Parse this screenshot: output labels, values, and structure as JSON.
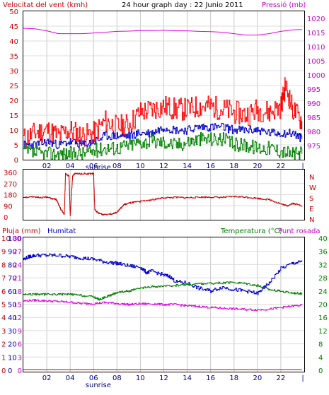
{
  "chart_data": [
    {
      "type": "line",
      "title": "24 hour graph day : 22 Junio 2011",
      "left_label": "Velocitat del vent (kmh)",
      "right_label": "Pressió (mb)",
      "sunrise_label": "sunrise",
      "xticks": [
        "02",
        "04",
        "06",
        "08",
        "10",
        "12",
        "14",
        "16",
        "18",
        "20",
        "22"
      ],
      "last_tick": "|",
      "left_ticks": [
        "0",
        "5",
        "10",
        "15",
        "20",
        "25",
        "30",
        "35",
        "40",
        "45",
        "50"
      ],
      "right_ticks": [
        "975",
        "980",
        "985",
        "990",
        "995",
        "1000",
        "1005",
        "1010",
        "1015",
        "1020"
      ],
      "ylim_left": [
        0,
        50
      ],
      "ylim_right": [
        970,
        1022.5
      ],
      "xlim": [
        0,
        24
      ],
      "colors": {
        "gust": "#ff0000",
        "avg": "#0000cc",
        "min": "#008000",
        "pressure": "#e000e0",
        "title": "#000000",
        "left": "#cc0000",
        "right": "#cc00cc"
      },
      "series": [
        {
          "key": "pressure",
          "x": [
            0,
            1,
            2,
            3,
            4,
            5,
            6,
            7,
            8,
            9,
            10,
            11,
            12,
            13,
            14,
            15,
            16,
            17,
            18,
            19,
            20,
            21,
            22,
            23,
            23.8
          ],
          "values": [
            1016.5,
            1016.3,
            1015.6,
            1014.6,
            1014.6,
            1014.6,
            1014.8,
            1015.1,
            1015.4,
            1015.5,
            1015.7,
            1015.7,
            1015.8,
            1015.6,
            1015.6,
            1015.4,
            1015.3,
            1015.1,
            1014.6,
            1014.1,
            1014.1,
            1014.6,
            1015.4,
            1015.9,
            1016.1
          ]
        },
        {
          "key": "gust",
          "x": [
            0,
            1,
            2,
            3,
            4,
            5,
            6,
            7,
            8,
            9,
            10,
            11,
            12,
            13,
            14,
            15,
            16,
            17,
            18,
            19,
            20,
            21,
            22,
            22.4,
            23,
            23.8
          ],
          "values": [
            7,
            9,
            10,
            8,
            10,
            8,
            9,
            13,
            11,
            12,
            16,
            17,
            18,
            17,
            17,
            18,
            18,
            17,
            16,
            15,
            17,
            16,
            18,
            25,
            17,
            13
          ]
        },
        {
          "key": "avg",
          "x": [
            0,
            1,
            2,
            3,
            4,
            5,
            6,
            7,
            8,
            9,
            10,
            11,
            12,
            13,
            14,
            15,
            16,
            17,
            18,
            19,
            20,
            21,
            22,
            23,
            23.8
          ],
          "values": [
            5,
            5,
            6,
            5,
            6,
            5,
            6,
            8,
            8,
            8,
            9,
            9,
            11,
            10,
            10,
            11,
            11,
            11,
            10,
            10,
            10,
            9,
            9,
            9,
            7
          ]
        },
        {
          "key": "min",
          "x": [
            0,
            1,
            2,
            3,
            4,
            5,
            6,
            7,
            8,
            9,
            10,
            11,
            12,
            13,
            14,
            15,
            16,
            17,
            18,
            19,
            20,
            21,
            22,
            23,
            23.8
          ],
          "values": [
            3,
            2,
            2,
            2,
            2,
            2,
            3,
            4,
            4,
            5,
            6,
            6,
            6,
            5,
            6,
            7,
            7,
            7,
            5,
            5,
            4,
            4,
            3,
            2,
            2
          ]
        }
      ]
    },
    {
      "type": "line",
      "ticks": [
        "360",
        "270",
        "180",
        "90",
        "0"
      ],
      "compass": [
        "N",
        "W",
        "S",
        "E",
        "N"
      ],
      "ylim": [
        0,
        360
      ],
      "xlim": [
        0,
        24
      ],
      "series": [
        {
          "key": "direction",
          "color": "#cc0000",
          "x": [
            0,
            1,
            2,
            2.8,
            3.2,
            3.5,
            3.6,
            3.9,
            4.0,
            4.2,
            4.4,
            5.0,
            5.9,
            6.0,
            6.1,
            6.4,
            6.8,
            7.5,
            8.0,
            8.6,
            9.2,
            10,
            11,
            12,
            13,
            14,
            15,
            16,
            17,
            18,
            19,
            20,
            21,
            22,
            22.5,
            23,
            23.8
          ],
          "values": [
            160,
            160,
            158,
            140,
            60,
            20,
            350,
            330,
            10,
            330,
            350,
            350,
            350,
            350,
            60,
            30,
            20,
            25,
            40,
            100,
            115,
            125,
            140,
            155,
            158,
            155,
            160,
            160,
            158,
            165,
            160,
            150,
            140,
            105,
            90,
            110,
            90
          ]
        }
      ]
    },
    {
      "type": "line",
      "left_label": "Pluja (mm)",
      "humidity_label": "Humitat",
      "right_label": "Temperatura (°C)",
      "dew_label": "Punt rosada",
      "sunrise_label": "sunrise",
      "xticks": [
        "02",
        "04",
        "06",
        "08",
        "10",
        "12",
        "14",
        "16",
        "18",
        "20",
        "22"
      ],
      "last_tick": "|",
      "ylim_rain": [
        0,
        10
      ],
      "ylim_hum": [
        0,
        100
      ],
      "ylim_temp": [
        0,
        40
      ],
      "ticks_rain": [
        "0",
        "1",
        "2",
        "3",
        "4",
        "5",
        "6",
        "7",
        "8",
        "9",
        "10"
      ],
      "ticks_hum": [
        "0",
        "10",
        "20",
        "30",
        "40",
        "50",
        "60",
        "70",
        "80",
        "90",
        "100"
      ],
      "ticks_left_a": [
        "0",
        "6",
        "12",
        "18",
        "24",
        "30"
      ],
      "ticks_left_b": [
        "0",
        "3",
        "6",
        "9",
        "12",
        "15",
        "18",
        "21",
        "24",
        "27",
        "30"
      ],
      "ticks_temp": [
        "0",
        "4",
        "8",
        "12",
        "16",
        "20",
        "24",
        "28",
        "32",
        "36",
        "40"
      ],
      "xlim": [
        0,
        24
      ],
      "series": [
        {
          "key": "humidity",
          "color": "#0000cc",
          "x": [
            0,
            0.5,
            1,
            2,
            3,
            4,
            5,
            6,
            7,
            8,
            9,
            10,
            10.5,
            11,
            12,
            12.5,
            13,
            14,
            15,
            16,
            17,
            18,
            19,
            20,
            20.5,
            21,
            22,
            23,
            23.8
          ],
          "values": [
            84,
            86,
            87,
            87,
            87,
            86,
            85,
            84,
            82,
            81,
            79,
            78,
            74,
            75,
            72,
            71,
            67,
            66,
            62,
            60,
            63,
            61,
            60,
            58,
            62,
            66,
            77,
            81,
            82
          ]
        },
        {
          "key": "temperature",
          "color": "#008000",
          "x": [
            0,
            1,
            2,
            3,
            4,
            5,
            6,
            6.5,
            7,
            7.5,
            8,
            9,
            10,
            11,
            12,
            13,
            14,
            15,
            16,
            17,
            18,
            19,
            20,
            21,
            22,
            23,
            23.8
          ],
          "values": [
            23,
            23,
            23,
            23,
            23,
            22.6,
            22.2,
            21.4,
            22.2,
            22.8,
            23.6,
            24,
            24.8,
            25.3,
            25.4,
            25.7,
            25.9,
            26.2,
            26.3,
            26.4,
            26.6,
            26.3,
            25.6,
            24.5,
            23.9,
            23.4,
            23.3
          ]
        },
        {
          "key": "dewpoint",
          "color": "#e000e0",
          "x": [
            0,
            1,
            2,
            3,
            4,
            5,
            6,
            7,
            8,
            9,
            10,
            11,
            12,
            13,
            14,
            15,
            16,
            17,
            18,
            19,
            20,
            21,
            22,
            23,
            23.8
          ],
          "values": [
            21,
            21.2,
            21,
            20.8,
            20.6,
            20.2,
            20.2,
            20.5,
            20.2,
            19.9,
            20.1,
            20.1,
            19.9,
            19.9,
            19.5,
            19.3,
            19,
            18.8,
            18.6,
            18.4,
            18.3,
            18.5,
            19,
            19.4,
            19.7
          ]
        },
        {
          "key": "rain",
          "color": "#cc0000",
          "x": [
            0,
            23.8
          ],
          "values": [
            0,
            0
          ]
        }
      ]
    }
  ]
}
